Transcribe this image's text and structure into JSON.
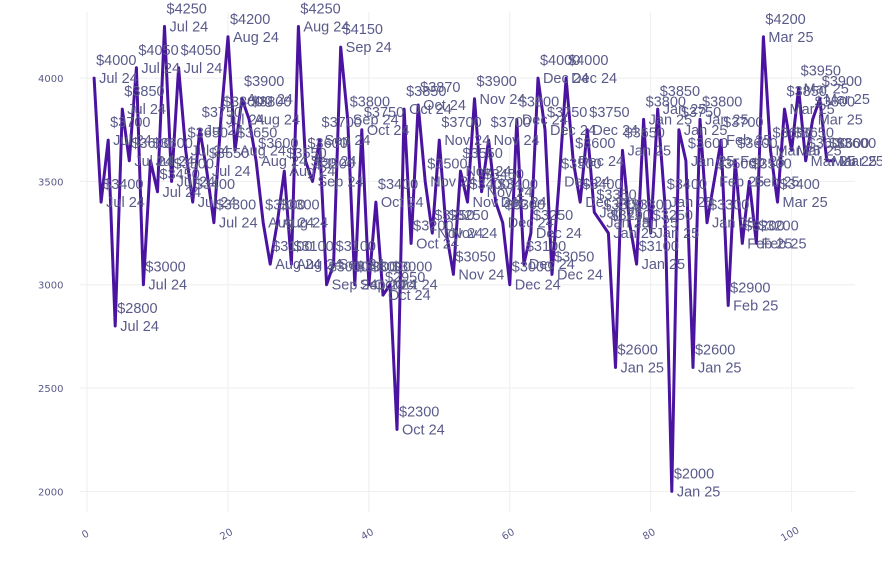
{
  "chart_data": {
    "type": "line",
    "title": "",
    "xlabel": "",
    "ylabel": "",
    "xlim": [
      -1,
      109
    ],
    "ylim": [
      1900,
      4320
    ],
    "xticks": [
      0,
      20,
      40,
      60,
      80,
      100
    ],
    "yticks": [
      2000,
      2500,
      3000,
      3500,
      4000
    ],
    "grid": true,
    "legend": "none",
    "color": "#4a14a0",
    "series": [
      {
        "x": [
          1,
          2,
          3,
          4,
          5,
          6,
          7,
          8,
          9,
          10,
          11,
          12,
          13,
          14,
          15,
          16,
          17,
          18,
          19,
          20,
          21,
          22,
          23,
          24,
          25,
          26,
          27,
          28,
          29,
          30,
          31,
          32,
          33,
          34,
          35,
          36,
          37,
          38,
          39,
          40,
          41,
          42,
          43,
          44,
          45,
          46,
          47,
          48,
          49,
          50,
          51,
          52,
          53,
          54,
          55,
          56,
          57,
          58,
          59,
          60,
          61,
          62,
          63,
          64,
          65,
          66,
          67,
          68,
          69,
          70,
          71,
          72,
          73,
          74,
          75,
          76,
          77,
          78,
          79,
          80,
          81,
          82,
          83,
          84,
          85,
          86,
          87,
          88,
          89,
          90,
          91,
          92,
          93,
          94,
          95,
          96,
          97,
          98,
          99,
          100,
          101,
          102,
          103,
          104,
          105,
          106
        ],
        "values": [
          4000,
          3400,
          3700,
          2800,
          3850,
          3600,
          4050,
          3000,
          3600,
          3450,
          4250,
          3500,
          4050,
          3650,
          3400,
          3750,
          3550,
          3300,
          3800,
          4200,
          3650,
          3900,
          3800,
          3600,
          3300,
          3100,
          3300,
          3550,
          3100,
          4250,
          3600,
          3500,
          3700,
          3000,
          3100,
          4150,
          3800,
          3000,
          3750,
          3000,
          3400,
          2950,
          3000,
          2300,
          3850,
          3200,
          3870,
          3500,
          3250,
          3700,
          3250,
          3050,
          3550,
          3400,
          3900,
          3450,
          3700,
          3400,
          3300,
          3000,
          3800,
          3100,
          3250,
          4000,
          3750,
          3050,
          3500,
          4000,
          3600,
          3400,
          3750,
          3350,
          3300,
          3250,
          2600,
          3650,
          3300,
          3100,
          3800,
          3250,
          3850,
          3400,
          2000,
          3750,
          3600,
          2600,
          3800,
          3300,
          3500,
          3700,
          2900,
          3600,
          3200,
          3500,
          3200,
          4200,
          3650,
          3400,
          3850,
          3650,
          3950,
          3600,
          3800,
          3900,
          3600,
          3600
        ]
      }
    ],
    "annotations": [
      {
        "x": 1,
        "value": "$4000",
        "date": "Jul 24"
      },
      {
        "x": 2,
        "value": "$3400",
        "date": "Jul 24"
      },
      {
        "x": 3,
        "value": "$3700",
        "date": "Jul 24"
      },
      {
        "x": 4,
        "value": "$2800",
        "date": "Jul 24"
      },
      {
        "x": 5,
        "value": "$3850",
        "date": "Jul 24"
      },
      {
        "x": 6,
        "value": "$3600",
        "date": "Jul 24"
      },
      {
        "x": 7,
        "value": "$4050",
        "date": "Jul 24"
      },
      {
        "x": 8,
        "value": "$3000",
        "date": "Jul 24"
      },
      {
        "x": 9,
        "value": "$3600",
        "date": "Jul 24"
      },
      {
        "x": 10,
        "value": "$3450",
        "date": "Jul 24"
      },
      {
        "x": 11,
        "value": "$4250",
        "date": "Jul 24"
      },
      {
        "x": 12,
        "value": "$3500",
        "date": "Jul 24"
      },
      {
        "x": 13,
        "value": "$4050",
        "date": "Jul 24"
      },
      {
        "x": 14,
        "value": "$3650",
        "date": "Jul 24"
      },
      {
        "x": 15,
        "value": "$3400",
        "date": "Jul 24"
      },
      {
        "x": 16,
        "value": "$3750",
        "date": "Jul 24"
      },
      {
        "x": 17,
        "value": "$3550",
        "date": "Jul 24"
      },
      {
        "x": 18,
        "value": "$3300",
        "date": "Jul 24"
      },
      {
        "x": 19,
        "value": "$3800",
        "date": "Jul 24"
      },
      {
        "x": 20,
        "value": "$4200",
        "date": "Aug 24"
      },
      {
        "x": 21,
        "value": "$3650",
        "date": "Aug 24"
      },
      {
        "x": 22,
        "value": "$3900",
        "date": "Aug 24"
      },
      {
        "x": 23,
        "value": "$3800",
        "date": "Aug 24"
      },
      {
        "x": 24,
        "value": "$3600",
        "date": "Aug 24"
      },
      {
        "x": 25,
        "value": "$3300",
        "date": "Aug 24"
      },
      {
        "x": 26,
        "value": "$3100",
        "date": "Aug 24"
      },
      {
        "x": 27,
        "value": "$3300",
        "date": "Aug 24"
      },
      {
        "x": 28,
        "value": "$3550",
        "date": "Aug 24"
      },
      {
        "x": 29,
        "value": "$3100",
        "date": "Aug 24"
      },
      {
        "x": 30,
        "value": "$4250",
        "date": "Aug 24"
      },
      {
        "x": 31,
        "value": "$3600",
        "date": "Sep 24"
      },
      {
        "x": 32,
        "value": "$3500",
        "date": "Sep 24"
      },
      {
        "x": 33,
        "value": "$3700",
        "date": "Sep 24"
      },
      {
        "x": 34,
        "value": "$3000",
        "date": "Sep 24"
      },
      {
        "x": 35,
        "value": "$3100",
        "date": "Sep 24"
      },
      {
        "x": 36,
        "value": "$4150",
        "date": "Sep 24"
      },
      {
        "x": 37,
        "value": "$3800",
        "date": "Sep 24"
      },
      {
        "x": 38,
        "value": "$3000",
        "date": "Sep 24"
      },
      {
        "x": 39,
        "value": "$3750",
        "date": "Oct 24"
      },
      {
        "x": 40,
        "value": "$3000",
        "date": "Oct 24"
      },
      {
        "x": 41,
        "value": "$3400",
        "date": "Oct 24"
      },
      {
        "x": 42,
        "value": "$2950",
        "date": "Oct 24"
      },
      {
        "x": 43,
        "value": "$3000",
        "date": "Oct 24"
      },
      {
        "x": 44,
        "value": "$2300",
        "date": "Oct 24"
      },
      {
        "x": 45,
        "value": "$3850",
        "date": "Oct 24"
      },
      {
        "x": 46,
        "value": "$3200",
        "date": "Oct 24"
      },
      {
        "x": 47,
        "value": "$3870",
        "date": "Oct 24"
      },
      {
        "x": 48,
        "value": "$3500",
        "date": "Nov 24"
      },
      {
        "x": 49,
        "value": "$3250",
        "date": "Nov 24"
      },
      {
        "x": 50,
        "value": "$3700",
        "date": "Nov 24"
      },
      {
        "x": 51,
        "value": "$3250",
        "date": "Nov 24"
      },
      {
        "x": 52,
        "value": "$3050",
        "date": "Nov 24"
      },
      {
        "x": 53,
        "value": "$3550",
        "date": "Nov 24"
      },
      {
        "x": 54,
        "value": "$3400",
        "date": "Nov 24"
      },
      {
        "x": 55,
        "value": "$3900",
        "date": "Nov 24"
      },
      {
        "x": 56,
        "value": "$3450",
        "date": "Nov 24"
      },
      {
        "x": 57,
        "value": "$3700",
        "date": "Nov 24"
      },
      {
        "x": 58,
        "value": "$3400",
        "date": "Dec 24"
      },
      {
        "x": 59,
        "value": "$3300",
        "date": "Dec 24"
      },
      {
        "x": 60,
        "value": "$3000",
        "date": "Dec 24"
      },
      {
        "x": 61,
        "value": "$3800",
        "date": "Dec 24"
      },
      {
        "x": 62,
        "value": "$3100",
        "date": "Dec 24"
      },
      {
        "x": 63,
        "value": "$3250",
        "date": "Dec 24"
      },
      {
        "x": 64,
        "value": "$4000",
        "date": "Dec 24"
      },
      {
        "x": 65,
        "value": "$3750",
        "date": "Dec 24"
      },
      {
        "x": 66,
        "value": "$3050",
        "date": "Dec 24"
      },
      {
        "x": 67,
        "value": "$3500",
        "date": "Dec 24"
      },
      {
        "x": 68,
        "value": "$4000",
        "date": "Dec 24"
      },
      {
        "x": 69,
        "value": "$3600",
        "date": "Dec 24"
      },
      {
        "x": 70,
        "value": "$3400",
        "date": "Dec 24"
      },
      {
        "x": 71,
        "value": "$3750",
        "date": "Dec 24"
      },
      {
        "x": 72,
        "value": "$3350",
        "date": "Jan 25"
      },
      {
        "x": 73,
        "value": "$3300",
        "date": "Jan 25"
      },
      {
        "x": 74,
        "value": "$3250",
        "date": "Jan 25"
      },
      {
        "x": 75,
        "value": "$2600",
        "date": "Jan 25"
      },
      {
        "x": 76,
        "value": "$3650",
        "date": "Jan 25"
      },
      {
        "x": 77,
        "value": "$3300",
        "date": "Jan 25"
      },
      {
        "x": 78,
        "value": "$3100",
        "date": "Jan 25"
      },
      {
        "x": 79,
        "value": "$3800",
        "date": "Jan 25"
      },
      {
        "x": 80,
        "value": "$3250",
        "date": "Jan 25"
      },
      {
        "x": 81,
        "value": "$3850",
        "date": "Jan 25"
      },
      {
        "x": 82,
        "value": "$3400",
        "date": "Jan 25"
      },
      {
        "x": 83,
        "value": "$2000",
        "date": "Jan 25"
      },
      {
        "x": 84,
        "value": "$3750",
        "date": "Jan 25"
      },
      {
        "x": 85,
        "value": "$3600",
        "date": "Jan 25"
      },
      {
        "x": 86,
        "value": "$2600",
        "date": "Jan 25"
      },
      {
        "x": 87,
        "value": "$3800",
        "date": "Jan 25"
      },
      {
        "x": 88,
        "value": "$3300",
        "date": "Jan 25"
      },
      {
        "x": 89,
        "value": "$3500",
        "date": "Feb 25"
      },
      {
        "x": 90,
        "value": "$3700",
        "date": "Feb 25"
      },
      {
        "x": 91,
        "value": "$2900",
        "date": "Feb 25"
      },
      {
        "x": 92,
        "value": "$3600",
        "date": "Feb 25"
      },
      {
        "x": 93,
        "value": "$3200",
        "date": "Feb 25"
      },
      {
        "x": 94,
        "value": "$3500",
        "date": "Feb 25"
      },
      {
        "x": 95,
        "value": "$3200",
        "date": "Feb 25"
      },
      {
        "x": 96,
        "value": "$4200",
        "date": "Mar 25"
      },
      {
        "x": 97,
        "value": "$3650",
        "date": "Mar 25"
      },
      {
        "x": 98,
        "value": "$3400",
        "date": "Mar 25"
      },
      {
        "x": 99,
        "value": "$3850",
        "date": "Mar 25"
      },
      {
        "x": 100,
        "value": "$3650",
        "date": "Mar 25"
      },
      {
        "x": 101,
        "value": "$3950",
        "date": "Mar 25"
      },
      {
        "x": 102,
        "value": "$3600",
        "date": "Mar 25"
      },
      {
        "x": 103,
        "value": "$3800",
        "date": "Mar 25"
      },
      {
        "x": 104,
        "value": "$3900",
        "date": "Mar 25"
      },
      {
        "x": 105,
        "value": "$3600",
        "date": "Mar 25"
      },
      {
        "x": 106,
        "value": "$3600",
        "date": "Mar 25"
      }
    ]
  }
}
